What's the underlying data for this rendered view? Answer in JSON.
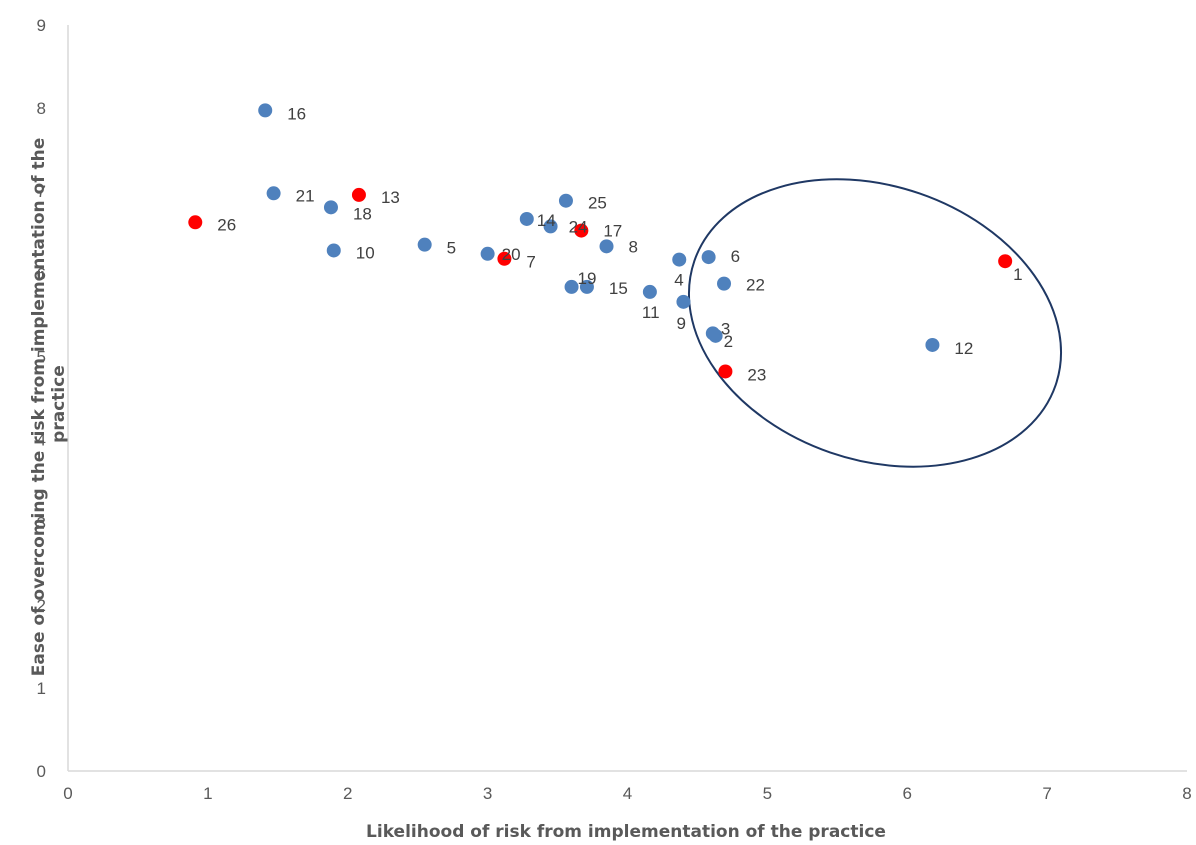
{
  "chart_data": {
    "type": "scatter",
    "xlabel": "Likelihood of risk from implementation of the practice",
    "ylabel_line1": "Ease of overcoming the risk from implementation of the",
    "ylabel_line2": "practice",
    "xlim": [
      0,
      8
    ],
    "ylim": [
      0,
      9
    ],
    "xticks": [
      "0",
      "1",
      "2",
      "3",
      "4",
      "5",
      "6",
      "7",
      "8"
    ],
    "yticks": [
      "0",
      "1",
      "2",
      "3",
      "4",
      "5",
      "6",
      "7",
      "8",
      "9"
    ],
    "grid": false,
    "legend": "none",
    "colors": {
      "blue": "#4f81bd",
      "red": "#ff0000",
      "ellipse": "#1f3864",
      "axis": "#d9d9d9"
    },
    "points": [
      {
        "label": "1",
        "x": 6.7,
        "y": 6.15,
        "color": "red"
      },
      {
        "label": "2",
        "x": 4.63,
        "y": 5.25,
        "color": "blue"
      },
      {
        "label": "3",
        "x": 4.61,
        "y": 5.28,
        "color": "blue"
      },
      {
        "label": "4",
        "x": 4.37,
        "y": 6.17,
        "color": "blue"
      },
      {
        "label": "5",
        "x": 2.55,
        "y": 6.35,
        "color": "blue"
      },
      {
        "label": "6",
        "x": 4.58,
        "y": 6.2,
        "color": "blue"
      },
      {
        "label": "7",
        "x": 3.12,
        "y": 6.18,
        "color": "red"
      },
      {
        "label": "8",
        "x": 3.85,
        "y": 6.33,
        "color": "blue"
      },
      {
        "label": "9",
        "x": 4.4,
        "y": 5.66,
        "color": "blue"
      },
      {
        "label": "10",
        "x": 1.9,
        "y": 6.28,
        "color": "blue"
      },
      {
        "label": "11",
        "x": 4.16,
        "y": 5.78,
        "color": "blue"
      },
      {
        "label": "12",
        "x": 6.18,
        "y": 5.14,
        "color": "blue"
      },
      {
        "label": "13",
        "x": 2.08,
        "y": 6.95,
        "color": "red"
      },
      {
        "label": "14",
        "x": 3.28,
        "y": 6.66,
        "color": "blue"
      },
      {
        "label": "15",
        "x": 3.71,
        "y": 5.84,
        "color": "blue"
      },
      {
        "label": "16",
        "x": 1.41,
        "y": 7.97,
        "color": "blue"
      },
      {
        "label": "17",
        "x": 3.67,
        "y": 6.52,
        "color": "red"
      },
      {
        "label": "18",
        "x": 1.88,
        "y": 6.8,
        "color": "blue"
      },
      {
        "label": "19",
        "x": 3.6,
        "y": 5.84,
        "color": "blue"
      },
      {
        "label": "20",
        "x": 3.0,
        "y": 6.24,
        "color": "blue"
      },
      {
        "label": "21",
        "x": 1.47,
        "y": 6.97,
        "color": "blue"
      },
      {
        "label": "22",
        "x": 4.69,
        "y": 5.88,
        "color": "blue"
      },
      {
        "label": "23",
        "x": 4.7,
        "y": 4.82,
        "color": "red"
      },
      {
        "label": "24",
        "x": 3.45,
        "y": 6.57,
        "color": "blue"
      },
      {
        "label": "25",
        "x": 3.56,
        "y": 6.88,
        "color": "blue"
      },
      {
        "label": "26",
        "x": 0.91,
        "y": 6.62,
        "color": "red"
      }
    ]
  }
}
